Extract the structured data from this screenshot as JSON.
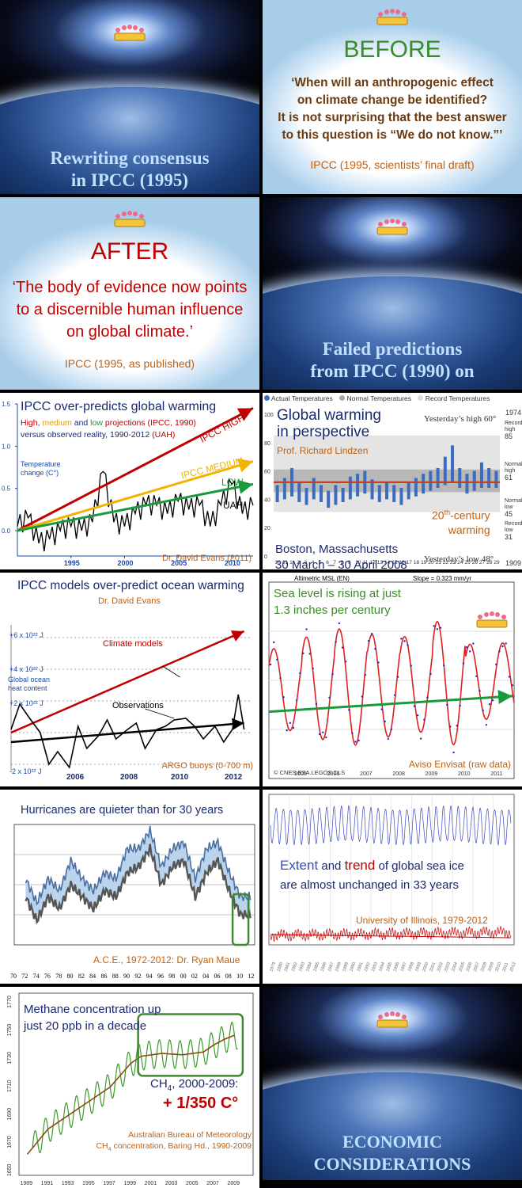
{
  "slide1": {
    "title_l1": "Rewriting consensus",
    "title_l2": "in IPCC (1995)"
  },
  "slide2": {
    "heading": "BEFORE",
    "quote_l1": "‘When will an anthropogenic effect",
    "quote_l2": "on climate change be identified?",
    "quote_l3": "It is not surprising that the best answer",
    "quote_l4": "to this question is “We do not know.”’",
    "source": "IPCC (1995, scientists’ final draft)"
  },
  "slide3": {
    "heading": "AFTER",
    "quote_l1": "‘The body of evidence now points",
    "quote_l2": "to a discernible human influence",
    "quote_l3": "on global climate.’",
    "source": "IPCC (1995, as published)"
  },
  "slide4": {
    "title_l1": "Failed predictions",
    "title_l2": "from IPCC (1990) on"
  },
  "slide5": {
    "title": "IPCC over-predicts global warming",
    "sub_high": "High",
    "sub_sep1": ", ",
    "sub_medium": "medium",
    "sub_and": " and ",
    "sub_low": "low",
    "sub_rest": " projections (IPCC, 1990)",
    "sub2a": "versus observed reality, 1990-2012 ",
    "sub2b": "(UAH)",
    "ylabel_l1": "Temperature",
    "ylabel_l2": "change (C°)",
    "label_high": "IPCC HIGH",
    "label_medium": "IPCC MEDIUM",
    "label_low": "LOW",
    "label_uah": "UAH",
    "credit": "Dr. David Evans (2011)",
    "chart_data": {
      "type": "line",
      "x_ticks": [
        "1995",
        "2000",
        "2005",
        "2010"
      ],
      "y_ticks": [
        "0.0",
        "0.5",
        "1.0",
        "1.5"
      ],
      "ylim": [
        -0.3,
        1.5
      ],
      "xlim": [
        1990,
        2012
      ],
      "series": [
        {
          "name": "IPCC HIGH",
          "x": [
            1990,
            2012
          ],
          "y": [
            0.0,
            1.45
          ],
          "color": "#c00000"
        },
        {
          "name": "IPCC MEDIUM",
          "x": [
            1990,
            2012
          ],
          "y": [
            0.0,
            0.82
          ],
          "color": "#f0b400"
        },
        {
          "name": "LOW",
          "x": [
            1990,
            2012
          ],
          "y": [
            0.0,
            0.55
          ],
          "color": "#1a9a3c"
        },
        {
          "name": "UAH",
          "x": [
            1990,
            1991,
            1992,
            1993,
            1994,
            1995,
            1996,
            1997,
            1998,
            1999,
            2000,
            2001,
            2002,
            2003,
            2004,
            2005,
            2006,
            2007,
            2008,
            2009,
            2010,
            2011,
            2012
          ],
          "y": [
            0.05,
            0.15,
            -0.15,
            -0.1,
            0.0,
            0.05,
            0.0,
            0.1,
            0.7,
            0.1,
            0.05,
            0.2,
            0.3,
            0.3,
            0.2,
            0.35,
            0.25,
            0.3,
            0.05,
            0.3,
            0.55,
            0.2,
            0.3
          ],
          "color": "#000000"
        }
      ]
    }
  },
  "slide6": {
    "legend_actual": "Actual Temperatures",
    "legend_normal": "Normal Temperatures",
    "legend_record": "Record Temperatures",
    "title_l1": "Global warming",
    "title_l2": "in perspective",
    "credit": "Prof. Richard Lindzen",
    "yday_high": "Yesterday’s high 60°",
    "yday_low": "Yesterday’s low 48°",
    "year_top": "1974",
    "year_bottom": "1909",
    "rec_high": "Record high",
    "rec_high_v": "85",
    "norm_high": "Normal high",
    "norm_high_v": "61",
    "norm_low": "Normal low",
    "norm_low_v": "45",
    "rec_low": "Record low",
    "rec_low_v": "31",
    "warm_l1a": "20",
    "warm_l1sup": "th",
    "warm_l1b": "-century",
    "warm_l2": "warming",
    "place": "Boston, Massachusetts",
    "dates": "30 March – 30 April 2008",
    "chart_data": {
      "type": "bar",
      "y_ticks": [
        "0",
        "20",
        "40",
        "60",
        "80",
        "100"
      ],
      "ylim": [
        0,
        105
      ],
      "x_ticks": [
        "30",
        "31",
        "1",
        "2",
        "3",
        "4",
        "5",
        "6",
        "7",
        "8",
        "9",
        "10",
        "11",
        "12",
        "13",
        "14",
        "15",
        "16",
        "17",
        "18",
        "19",
        "20",
        "21",
        "22",
        "23",
        "24",
        "25",
        "26",
        "27",
        "28",
        "29"
      ],
      "series": [
        {
          "name": "Actual Temperatures",
          "highs": [
            50,
            55,
            62,
            52,
            48,
            55,
            50,
            46,
            50,
            48,
            56,
            58,
            60,
            54,
            50,
            52,
            50,
            48,
            52,
            55,
            58,
            60,
            62,
            70,
            78,
            62,
            58,
            60,
            66,
            62,
            60
          ],
          "lows": [
            38,
            40,
            42,
            38,
            36,
            40,
            38,
            34,
            36,
            38,
            40,
            42,
            44,
            40,
            38,
            40,
            38,
            36,
            40,
            42,
            44,
            46,
            48,
            50,
            52,
            48,
            44,
            46,
            48,
            48,
            48
          ]
        }
      ]
    }
  },
  "slide7": {
    "title": "IPCC models over-predict ocean warming",
    "credit": "Dr. David Evans",
    "label_models": "Climate models",
    "label_obs": "Observations",
    "ylabel_l1": "Global ocean",
    "ylabel_l2": "heat content",
    "y_ticks": [
      "+6 x 10²² J",
      "+4 x 10²² J",
      "+2 x 10²² J",
      "-2 x 10²² J"
    ],
    "x_ticks": [
      "2006",
      "2008",
      "2010",
      "2012"
    ],
    "source": "ARGO buoys (0-700 m)",
    "chart_data": {
      "type": "line",
      "series": [
        {
          "name": "Climate models",
          "x": [
            2004,
            2012
          ],
          "y": [
            0.0,
            6.4
          ]
        },
        {
          "name": "Observations",
          "x": [
            2004.0,
            2004.3,
            2004.6,
            2005.0,
            2005.3,
            2005.6,
            2006.0,
            2006.3,
            2006.6,
            2007.0,
            2007.3,
            2007.6,
            2008.0,
            2008.3,
            2008.6,
            2009.0,
            2009.3,
            2009.6,
            2010.0,
            2010.3,
            2010.6,
            2011.0,
            2011.3,
            2011.6,
            2011.8,
            2012.0
          ],
          "y": [
            0.2,
            1.8,
            1.0,
            0.0,
            -2.0,
            -1.2,
            -2.2,
            0.4,
            -1.0,
            -0.2,
            0.8,
            -0.4,
            0.2,
            0.6,
            -1.0,
            0.2,
            0.4,
            0.8,
            0.9,
            0.4,
            -0.4,
            0.4,
            -0.6,
            0.2,
            2.4,
            0.2
          ]
        },
        {
          "name": "Observations trend",
          "x": [
            2004,
            2012
          ],
          "y": [
            -0.6,
            0.6
          ]
        }
      ]
    }
  },
  "slide8": {
    "title_l1": "Sea level is rising at just",
    "title_l2": "1.3 inches per century",
    "hdr_left": "Altimetric MSL (EN)",
    "hdr_right": "Slope = 0.323 mm/yr",
    "copyright": "© CNES.ESA.LEGOS.CLS",
    "source": "Aviso Envisat (raw data)",
    "x_ticks": [
      "2005",
      "2006",
      "2007",
      "2008",
      "2009",
      "2010",
      "2011"
    ],
    "chart_data": {
      "type": "line",
      "x_range": [
        2004.5,
        2012.0
      ],
      "trend_mm_per_yr": 0.323,
      "series": [
        {
          "name": "Altimetric MSL (EN)",
          "description": "annual cycle"
        }
      ]
    }
  },
  "slide9": {
    "title": "Hurricanes are quieter than for 30 years",
    "credit": "A.C.E., 1972-2012: Dr. Ryan Maue",
    "x_ticks": [
      "70",
      "72",
      "74",
      "76",
      "78",
      "80",
      "82",
      "84",
      "86",
      "88",
      "90",
      "92",
      "94",
      "96",
      "98",
      "00",
      "02",
      "04",
      "06",
      "08",
      "10",
      "12"
    ],
    "chart_data": {
      "type": "area",
      "x": [
        1972,
        1974,
        1976,
        1978,
        1980,
        1982,
        1984,
        1986,
        1988,
        1990,
        1992,
        1994,
        1996,
        1998,
        2000,
        2002,
        2004,
        2006,
        2008,
        2010,
        2012
      ],
      "y_upper": [
        0.55,
        0.35,
        0.55,
        0.45,
        0.7,
        0.55,
        0.45,
        0.6,
        0.55,
        0.8,
        0.8,
        0.95,
        0.65,
        0.8,
        0.85,
        0.55,
        0.8,
        0.85,
        0.6,
        0.4,
        0.4
      ],
      "y_lower": [
        0.4,
        0.2,
        0.4,
        0.3,
        0.5,
        0.4,
        0.3,
        0.45,
        0.4,
        0.6,
        0.65,
        0.8,
        0.5,
        0.65,
        0.7,
        0.4,
        0.6,
        0.7,
        0.45,
        0.25,
        0.25
      ]
    }
  },
  "slide10": {
    "title_a": "Extent",
    "title_b": " and ",
    "title_c": "trend",
    "title_d": " of global sea ice",
    "title_l2": "are almost unchanged in 33 years",
    "source": "University of Illinois, 1979-2012",
    "chart_data": {
      "type": "line",
      "x_range": [
        1979,
        2012
      ],
      "series": [
        {
          "name": "Extent",
          "description": "seasonal cycle"
        },
        {
          "name": "trend",
          "description": "anomaly"
        }
      ]
    }
  },
  "slide11": {
    "title_l1": "Methane concentration up",
    "title_l2": "just 20 ppb in a decade",
    "formula_a": "CH",
    "formula_sub": "4",
    "formula_b": ", 2000-2009:",
    "result": "+ 1/350 C°",
    "source_l1": "Australian Bureau of Meteorology",
    "source_l2a": "CH",
    "source_l2sub": "4",
    "source_l2b": " concentration, Baring Hd., 1990-2009",
    "y_ticks": [
      "1650",
      "1670",
      "1690",
      "1710",
      "1730",
      "1750",
      "1770"
    ],
    "x_ticks": [
      "1989",
      "1991",
      "1993",
      "1995",
      "1997",
      "1999",
      "2001",
      "2003",
      "2005",
      "2007",
      "2009"
    ],
    "chart_data": {
      "type": "line",
      "ylim": [
        1645,
        1775
      ],
      "series": [
        {
          "name": "CH4 trend",
          "x": [
            1989,
            1991,
            1993,
            1995,
            1997,
            1999,
            2000,
            2002,
            2004,
            2006,
            2007,
            2008,
            2009
          ],
          "y": [
            1660,
            1678,
            1688,
            1698,
            1708,
            1725,
            1730,
            1732,
            1731,
            1733,
            1738,
            1742,
            1745
          ]
        },
        {
          "name": "CH4 monthly",
          "description": "seasonal cycle"
        }
      ]
    }
  },
  "slide12": {
    "title_l1": "ECONOMIC",
    "title_l2": "CONSIDERATIONS"
  }
}
